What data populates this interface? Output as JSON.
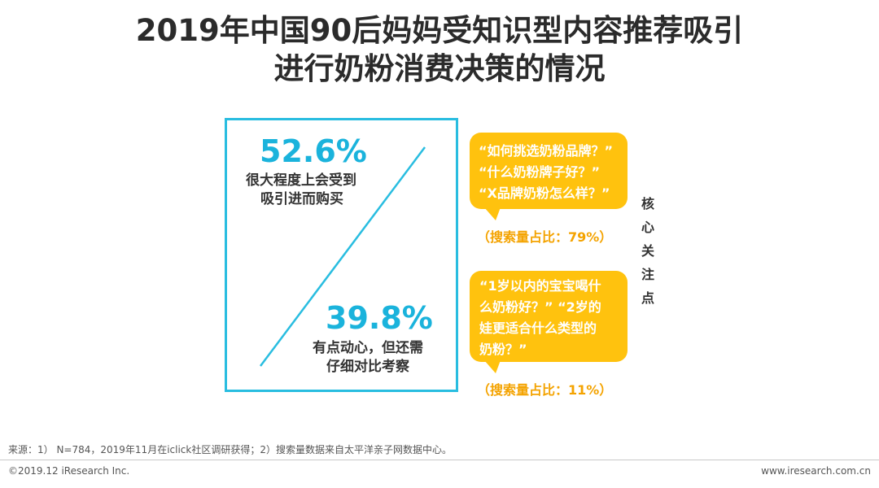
{
  "title": {
    "line1": "2019年中国90后妈妈受知识型内容推荐吸引",
    "line2": "进行奶粉消费决策的情况"
  },
  "chart_data": {
    "type": "bar",
    "categories": [
      "很大程度上会受到吸引进而购买",
      "有点动心，但还需仔细对比考察"
    ],
    "values": [
      52.6,
      39.8
    ],
    "labels": [
      {
        "value": "52.6%",
        "line1": "很大程度上会受到",
        "line2": "吸引进而购买"
      },
      {
        "value": "39.8%",
        "line1": "有点动心，但还需",
        "line2": "仔细对比考察"
      }
    ]
  },
  "bubbles": [
    {
      "lines": [
        "“如何挑选奶粉品牌？”",
        "“什么奶粉牌子好？”",
        "“X品牌奶粉怎么样？”"
      ],
      "share": "（搜索量占比：79%）"
    },
    {
      "lines": [
        "“1岁以内的宝宝喝什",
        "么奶粉好？”  “2岁的",
        "娃更适合什么类型的",
        "奶粉？”"
      ],
      "share": "（搜索量占比：11%）"
    }
  ],
  "side_label": [
    "核",
    "心",
    "关",
    "注",
    "点"
  ],
  "colors": {
    "accent": "#1ab3dc",
    "frame": "#29bde0",
    "bubble": "#ffc20e",
    "share": "#f4a300"
  },
  "source": "来源：1） N=784，2019年11月在iclick社区调研获得；2）搜索量数据来自太平洋亲子网数据中心。",
  "footer": {
    "copyright": "©2019.12 iResearch Inc.",
    "website": "www.iresearch.com.cn"
  }
}
